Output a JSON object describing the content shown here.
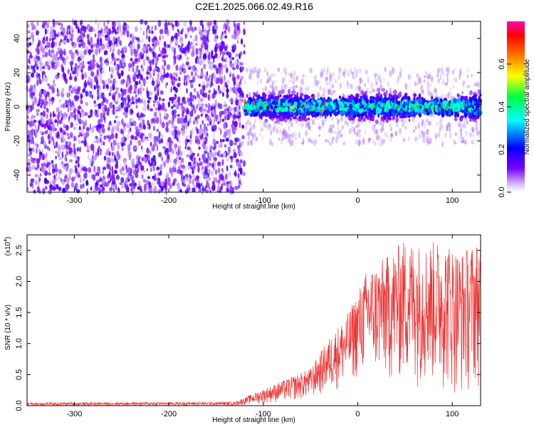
{
  "figure_title": "C2E1.2025.066.02.49.R16",
  "chart_data": [
    {
      "type": "heatmap",
      "xlabel": "Height of straight line (km)",
      "ylabel": "Frequency (Hz)",
      "xlim": [
        -350,
        130
      ],
      "ylim": [
        -50,
        50
      ],
      "xticks": [
        -300,
        -200,
        -100,
        0,
        100
      ],
      "yticks": [
        -40,
        -20,
        0,
        20,
        40
      ],
      "colorbar": {
        "label": "Normalized spectral amplitude",
        "range": [
          0.0,
          0.8
        ],
        "ticks": [
          "0.0",
          "0.2",
          "0.4",
          "0.6"
        ],
        "colormap": "rainbow (white-violet-blue-cyan-green-yellow-red-magenta)"
      },
      "regions": [
        {
          "x": [
            -350,
            -120
          ],
          "freq_spread": [
            -50,
            50
          ],
          "amplitude": "0.05-0.15 noise"
        },
        {
          "x": [
            -120,
            130
          ],
          "freq_center": 0,
          "freq_spread": [
            -10,
            10
          ],
          "amplitude": "0.2-0.75 signal"
        }
      ],
      "grid": false
    },
    {
      "type": "line",
      "xlabel": "Height of straight line (km)",
      "ylabel": "SNR (10 * v/v)",
      "y_multiplier": "(x10^4)",
      "xlim": [
        -350,
        130
      ],
      "ylim": [
        0,
        2.75
      ],
      "xticks": [
        -300,
        -200,
        -100,
        0,
        100
      ],
      "yticks": [
        "0.0",
        "0.5",
        "1.0",
        "1.5",
        "2.0",
        "2.5"
      ],
      "series_color": "#ee3333",
      "envelope": {
        "x": [
          -350,
          -130,
          -110,
          -80,
          -50,
          -30,
          -10,
          10,
          30,
          50,
          70,
          90,
          110,
          130
        ],
        "y_max": [
          0.05,
          0.06,
          0.2,
          0.4,
          0.6,
          1.1,
          1.5,
          2.2,
          2.4,
          2.7,
          2.6,
          2.7,
          2.5,
          2.7
        ],
        "y_min": [
          0.0,
          0.0,
          0.02,
          0.05,
          0.1,
          0.2,
          0.3,
          0.5,
          0.3,
          0.3,
          0.3,
          0.2,
          0.1,
          0.3
        ]
      },
      "grid": false
    }
  ]
}
